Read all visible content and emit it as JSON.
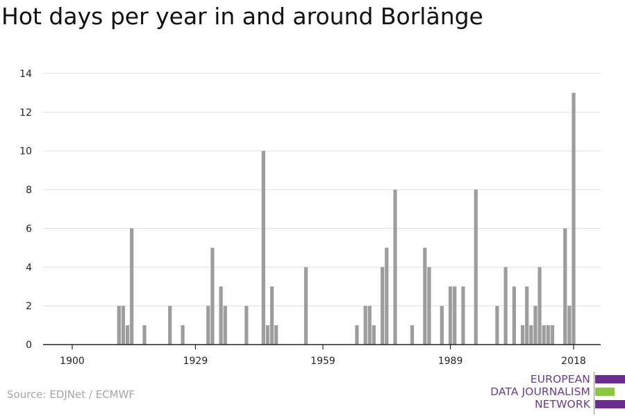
{
  "title": "Hot days per year in and around Borlänge",
  "source": "Source: EDJNet / ECMWF",
  "logo": {
    "line1": "EUROPEAN",
    "line2": "DATA JOURNALISM",
    "line3": "NETWORK",
    "colors": {
      "purple": "#6b2c91",
      "green": "#8dc63f"
    }
  },
  "chart_data": {
    "type": "bar",
    "title": "Hot days per year in and around Borlänge",
    "xlabel": "",
    "ylabel": "",
    "x_ticks": [
      1900,
      1929,
      1959,
      1989,
      2018
    ],
    "y_ticks": [
      0,
      2,
      4,
      6,
      8,
      10,
      12,
      14
    ],
    "xlim": [
      1900,
      2018
    ],
    "ylim": [
      0,
      14
    ],
    "grid": true,
    "bar_color": "#9d9d9d",
    "points": [
      {
        "year": 1911,
        "value": 2
      },
      {
        "year": 1912,
        "value": 2
      },
      {
        "year": 1913,
        "value": 1
      },
      {
        "year": 1914,
        "value": 6
      },
      {
        "year": 1917,
        "value": 1
      },
      {
        "year": 1923,
        "value": 2
      },
      {
        "year": 1926,
        "value": 1
      },
      {
        "year": 1932,
        "value": 2
      },
      {
        "year": 1933,
        "value": 5
      },
      {
        "year": 1935,
        "value": 3
      },
      {
        "year": 1936,
        "value": 2
      },
      {
        "year": 1941,
        "value": 2
      },
      {
        "year": 1945,
        "value": 10
      },
      {
        "year": 1946,
        "value": 1
      },
      {
        "year": 1947,
        "value": 3
      },
      {
        "year": 1948,
        "value": 1
      },
      {
        "year": 1955,
        "value": 4
      },
      {
        "year": 1967,
        "value": 1
      },
      {
        "year": 1969,
        "value": 2
      },
      {
        "year": 1970,
        "value": 2
      },
      {
        "year": 1971,
        "value": 1
      },
      {
        "year": 1973,
        "value": 4
      },
      {
        "year": 1974,
        "value": 5
      },
      {
        "year": 1976,
        "value": 8
      },
      {
        "year": 1980,
        "value": 1
      },
      {
        "year": 1983,
        "value": 5
      },
      {
        "year": 1984,
        "value": 4
      },
      {
        "year": 1987,
        "value": 2
      },
      {
        "year": 1989,
        "value": 3
      },
      {
        "year": 1990,
        "value": 3
      },
      {
        "year": 1992,
        "value": 3
      },
      {
        "year": 1995,
        "value": 8
      },
      {
        "year": 2000,
        "value": 2
      },
      {
        "year": 2002,
        "value": 4
      },
      {
        "year": 2004,
        "value": 3
      },
      {
        "year": 2006,
        "value": 1
      },
      {
        "year": 2007,
        "value": 3
      },
      {
        "year": 2008,
        "value": 1
      },
      {
        "year": 2009,
        "value": 2
      },
      {
        "year": 2010,
        "value": 4
      },
      {
        "year": 2011,
        "value": 1
      },
      {
        "year": 2012,
        "value": 1
      },
      {
        "year": 2013,
        "value": 1
      },
      {
        "year": 2016,
        "value": 6
      },
      {
        "year": 2017,
        "value": 2
      },
      {
        "year": 2018,
        "value": 13
      }
    ]
  }
}
